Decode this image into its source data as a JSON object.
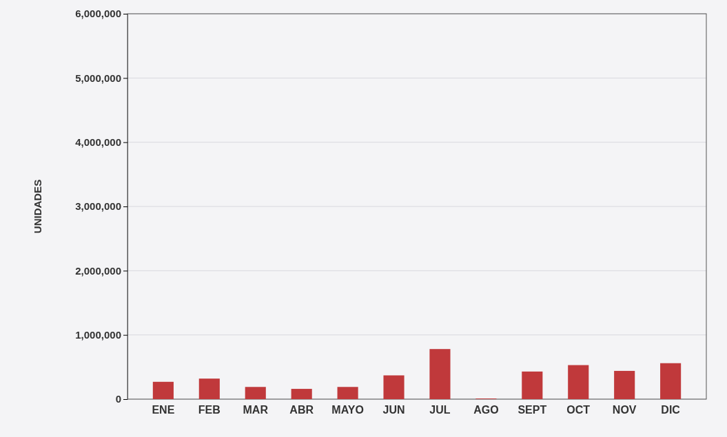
{
  "chart_data": {
    "type": "bar",
    "ylabel": "UNIDADES",
    "categories": [
      "ENE",
      "FEB",
      "MAR",
      "ABR",
      "MAYO",
      "JUN",
      "JUL",
      "AGO",
      "SEPT",
      "OCT",
      "NOV",
      "DIC"
    ],
    "values": [
      270000,
      320000,
      190000,
      160000,
      190000,
      370000,
      780000,
      10000,
      430000,
      530000,
      440000,
      560000
    ],
    "color": "#c0393b",
    "ylim": [
      0,
      6000000
    ],
    "yticks": [
      {
        "value": 0,
        "label": "0"
      },
      {
        "value": 1000000,
        "label": "1,000,000"
      },
      {
        "value": 2000000,
        "label": "2,000,000"
      },
      {
        "value": 3000000,
        "label": "3,000,000"
      },
      {
        "value": 4000000,
        "label": "4,000,000"
      },
      {
        "value": 5000000,
        "label": "5,000,000"
      },
      {
        "value": 6000000,
        "label": "6,000,000"
      }
    ],
    "grid": "y"
  }
}
